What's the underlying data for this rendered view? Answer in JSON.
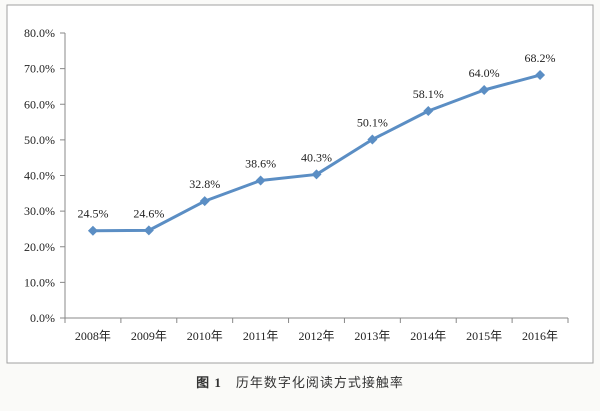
{
  "caption": {
    "figure_label": "图 1",
    "text": "历年数字化阅读方式接触率"
  },
  "colors": {
    "line": "#5b8ec4",
    "marker": "#5b8ec4",
    "axis": "#888888",
    "text": "#222222",
    "frame": "#999999"
  },
  "chart_data": {
    "type": "line",
    "categories": [
      "2008年",
      "2009年",
      "2010年",
      "2011年",
      "2012年",
      "2013年",
      "2014年",
      "2015年",
      "2016年"
    ],
    "series": [
      {
        "values": [
          24.5,
          24.6,
          32.8,
          38.6,
          40.3,
          50.1,
          58.1,
          64.0,
          68.2
        ]
      }
    ],
    "data_labels": [
      "24.5%",
      "24.6%",
      "32.8%",
      "38.6%",
      "40.3%",
      "50.1%",
      "58.1%",
      "64.0%",
      "68.2%"
    ],
    "y_ticks": [
      "0.0%",
      "10.0%",
      "20.0%",
      "30.0%",
      "40.0%",
      "50.0%",
      "60.0%",
      "70.0%",
      "80.0%"
    ],
    "ylim": [
      0,
      80
    ],
    "grid": false,
    "legend": "none",
    "title": "",
    "xlabel": "",
    "ylabel": ""
  }
}
